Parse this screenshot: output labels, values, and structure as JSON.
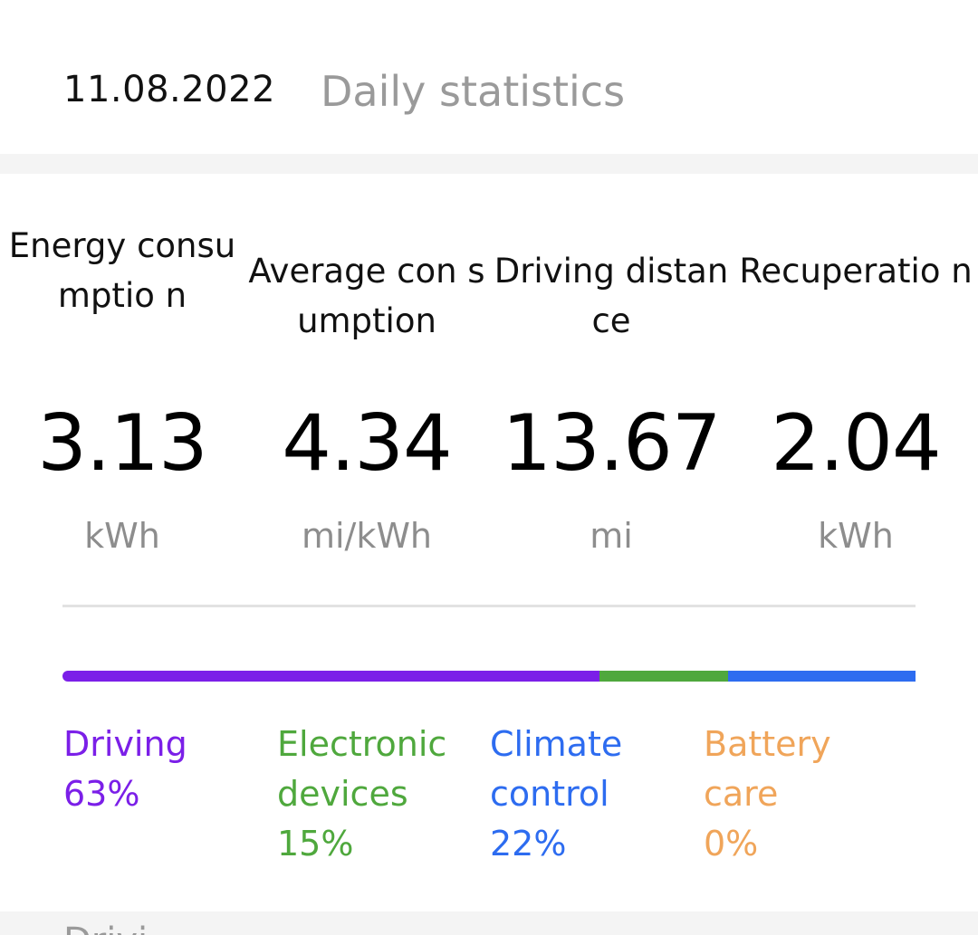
{
  "header": {
    "date": "11.08.2022",
    "title": "Daily statistics"
  },
  "stats": [
    {
      "label": "Energy consumptio n",
      "value": "3.13",
      "unit": "kWh"
    },
    {
      "label": "Average con sumption",
      "value": "4.34",
      "unit": "mi/kWh"
    },
    {
      "label": "Driving distance",
      "value": "13.67",
      "unit": "mi"
    },
    {
      "label": "Recuperatio n",
      "value": "2.04",
      "unit": "kWh"
    }
  ],
  "breakdown": [
    {
      "label": "Driving",
      "percent": "63%",
      "fraction": 0.63,
      "color": "#7b1fe8"
    },
    {
      "label": "Electronic devices",
      "percent": "15%",
      "fraction": 0.15,
      "color": "#4fa83d"
    },
    {
      "label": "Climate control",
      "percent": "22%",
      "fraction": 0.22,
      "color": "#2d6cf0"
    },
    {
      "label": "Battery care",
      "percent": "0%",
      "fraction": 0.0,
      "color": "#f0a55a"
    }
  ],
  "next_section_peek": "Drivi"
}
